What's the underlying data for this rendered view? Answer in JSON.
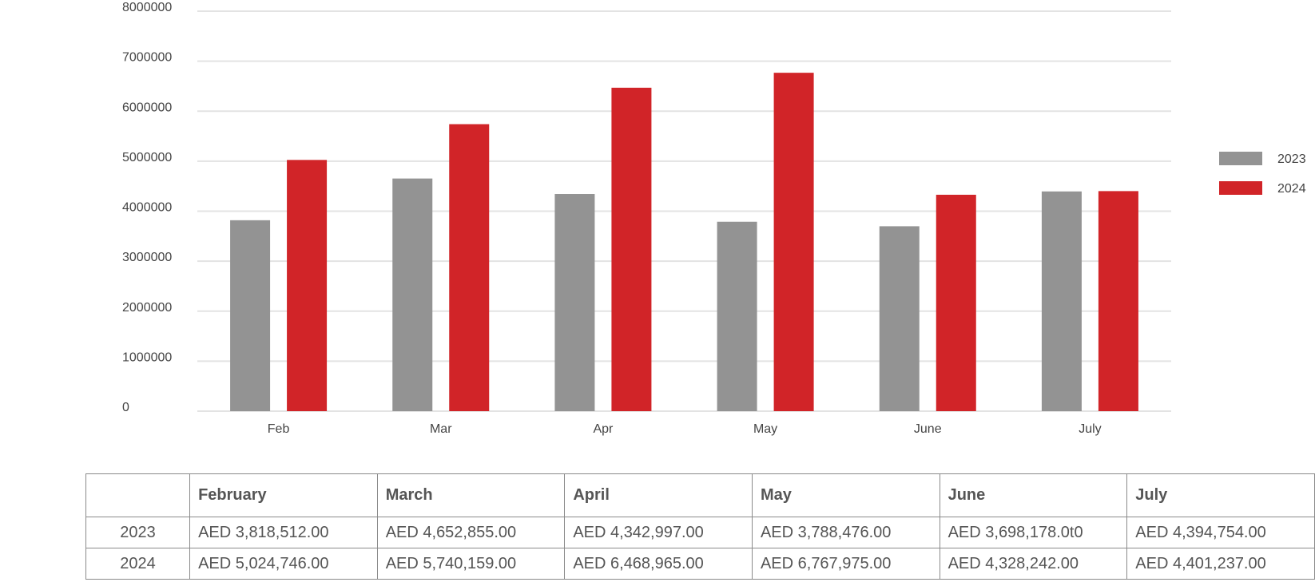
{
  "chart_data": {
    "type": "bar",
    "categories": [
      "Feb",
      "Mar",
      "Apr",
      "May",
      "June",
      "July"
    ],
    "series": [
      {
        "name": "2023",
        "color": "#939393",
        "values": [
          3818512,
          4652855,
          4342997,
          3788476,
          3698178,
          4394754
        ]
      },
      {
        "name": "2024",
        "color": "#d12428",
        "values": [
          5024746,
          5740159,
          6468965,
          6767975,
          4328242,
          4401237
        ]
      }
    ],
    "ylim": [
      0,
      8000000
    ],
    "yticks": [
      "0",
      "1000000",
      "2000000",
      "3000000",
      "4000000",
      "5000000",
      "6000000",
      "7000000",
      "8000000"
    ],
    "grid": true,
    "legend_position": "right"
  },
  "table": {
    "headers": [
      "",
      "February",
      "March",
      "April",
      "May",
      "June",
      "July"
    ],
    "rows": [
      {
        "year": "2023",
        "cells": [
          "AED 3,818,512.00",
          "AED 4,652,855.00",
          "AED 4,342,997.00",
          "AED 3,788,476.00",
          "AED 3,698,178.0t0",
          "AED 4,394,754.00"
        ]
      },
      {
        "year": "2024",
        "cells": [
          "AED 5,024,746.00",
          "AED 5,740,159.00",
          "AED 6,468,965.00",
          "AED 6,767,975.00",
          "AED 4,328,242.00",
          "AED 4,401,237.00"
        ]
      }
    ]
  }
}
